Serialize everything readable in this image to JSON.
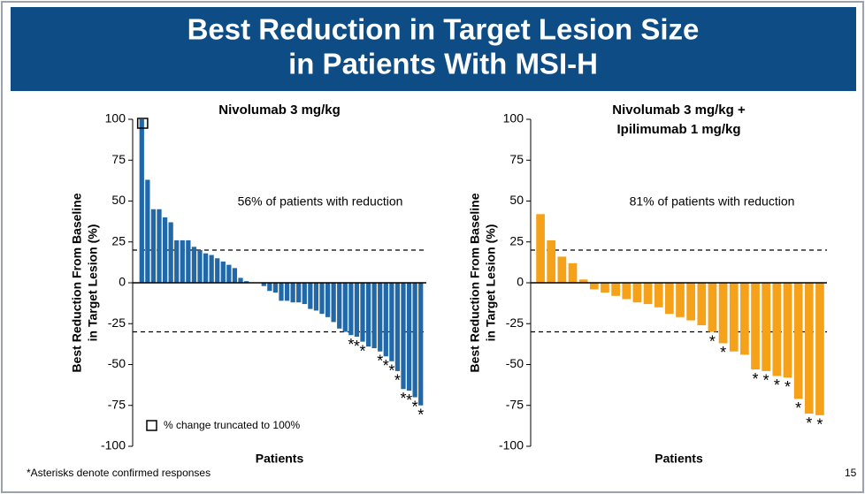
{
  "header": {
    "title": [
      "Best Reduction in Target Lesion Size",
      "in Patients With MSI-H"
    ]
  },
  "footnote": "*Asterisks denote confirmed responses",
  "page_number": "15",
  "chart_data": [
    {
      "type": "bar",
      "title": [
        "Nivolumab 3 mg/kg"
      ],
      "color": "#2068a8",
      "y_label": [
        "Best Reduction From Baseline",
        "in Target Lesion (%)"
      ],
      "x_label": "Patients",
      "annotation": "56% of patients with reduction",
      "legend_note": "% change truncated to 100%",
      "truncated": [
        0
      ],
      "ylim": [
        -100,
        100
      ],
      "yticks": [
        -100,
        -75,
        -50,
        -25,
        0,
        25,
        50,
        75,
        100
      ],
      "reference_lines": [
        20,
        -30
      ],
      "values": [
        100,
        63,
        45,
        45,
        40,
        37,
        26,
        26,
        26,
        22,
        20,
        18,
        17,
        15,
        13,
        11,
        9,
        3,
        1,
        0,
        0,
        -2,
        -5,
        -6,
        -11,
        -11,
        -12,
        -12,
        -13,
        -16,
        -17,
        -19,
        -21,
        -24,
        -28,
        -30,
        -32,
        -33,
        -36,
        -39,
        -40,
        -42,
        -45,
        -48,
        -54,
        -65,
        -66,
        -70,
        -75
      ],
      "confirmed_marker": "*",
      "confirmed": [
        36,
        37,
        38,
        41,
        42,
        43,
        44,
        45,
        46,
        47,
        48
      ]
    },
    {
      "type": "bar",
      "title": [
        "Nivolumab 3 mg/kg +",
        "Ipilimumab 1 mg/kg"
      ],
      "color": "#f5a21a",
      "y_label": [
        "Best Reduction From Baseline",
        "in Target Lesion (%)"
      ],
      "x_label": "Patients",
      "annotation": "81% of patients with reduction",
      "ylim": [
        -100,
        100
      ],
      "yticks": [
        -100,
        -75,
        -50,
        -25,
        0,
        25,
        50,
        75,
        100
      ],
      "reference_lines": [
        20,
        -30
      ],
      "values": [
        42,
        26,
        16,
        12,
        2,
        -4,
        -6,
        -8,
        -10,
        -12,
        -13,
        -15,
        -19,
        -21,
        -23,
        -26,
        -30,
        -37,
        -42,
        -44,
        -53,
        -54,
        -57,
        -58,
        -71,
        -80,
        -81
      ],
      "confirmed_marker": "*",
      "confirmed": [
        16,
        17,
        20,
        21,
        22,
        23,
        24,
        25,
        26
      ]
    }
  ]
}
